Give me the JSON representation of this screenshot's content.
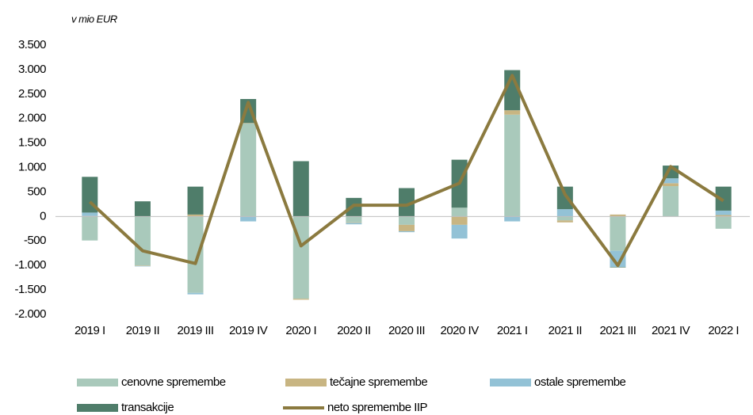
{
  "chart_data": {
    "type": "bar",
    "stacked": true,
    "axis_label": "v mio EUR",
    "categories": [
      "2019 I",
      "2019 II",
      "2019 III",
      "2019 IV",
      "2020 I",
      "2020 II",
      "2020 III",
      "2020 IV",
      "2021 I",
      "2021 II",
      "2021 III",
      "2021 IV",
      "2022 I"
    ],
    "series": [
      {
        "name": "cenovne spremembe",
        "color": "#a9c9bb",
        "values": [
          -490,
          -1000,
          -1560,
          1900,
          -1680,
          -120,
          -170,
          180,
          2080,
          -80,
          -700,
          620,
          -250
        ]
      },
      {
        "name": "tečajne spremembe",
        "color": "#c8b582",
        "values": [
          10,
          -10,
          40,
          10,
          -20,
          -10,
          -130,
          -170,
          90,
          -40,
          40,
          60,
          30
        ]
      },
      {
        "name": "ostale spremembe",
        "color": "#93c2d6",
        "values": [
          70,
          -10,
          -30,
          -100,
          0,
          -30,
          -20,
          -280,
          -100,
          150,
          -330,
          100,
          90
        ]
      },
      {
        "name": "transakcije",
        "color": "#4f7d6a",
        "values": [
          730,
          310,
          570,
          490,
          1130,
          380,
          580,
          980,
          820,
          460,
          -10,
          260,
          490
        ]
      },
      {
        "name": "neto spremembe IIP",
        "color": "#8b7a3f",
        "type": "line",
        "values": [
          300,
          -700,
          -960,
          2330,
          -600,
          230,
          230,
          680,
          2880,
          450,
          -1000,
          1020,
          320
        ]
      }
    ],
    "ylim": [
      -2000,
      3500
    ],
    "yticks": [
      {
        "value": -2000,
        "label": "-2.000"
      },
      {
        "value": -1500,
        "label": "-1.500"
      },
      {
        "value": -1000,
        "label": "-1.000"
      },
      -500,
      0,
      500,
      {
        "value": 1000,
        "label": "1.000"
      },
      {
        "value": 1500,
        "label": "1.500"
      },
      {
        "value": 2000,
        "label": "2.000"
      },
      {
        "value": 2500,
        "label": "2.500"
      },
      {
        "value": 3000,
        "label": "3.000"
      },
      {
        "value": 3500,
        "label": "3.500"
      }
    ]
  }
}
